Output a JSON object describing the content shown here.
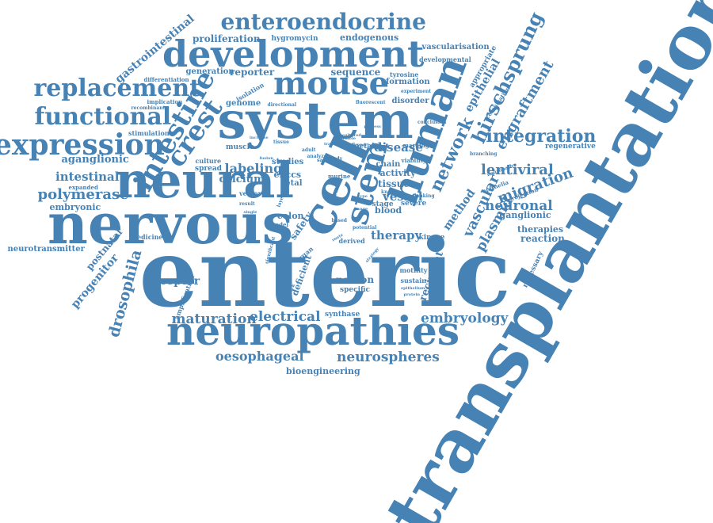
{
  "color": "#4682b4",
  "words": [
    {
      "text": "transplantation"
    },
    {
      "text": "enteric"
    },
    {
      "text": "nervous"
    },
    {
      "text": "neural"
    },
    {
      "text": "system"
    },
    {
      "text": "neuropathies"
    },
    {
      "text": "development"
    },
    {
      "text": "human"
    },
    {
      "text": "mouse"
    },
    {
      "text": "cell"
    },
    {
      "text": "stem"
    },
    {
      "text": "expression"
    },
    {
      "text": "functional"
    },
    {
      "text": "replacement"
    },
    {
      "text": "intestine"
    },
    {
      "text": "crest"
    },
    {
      "text": "enteroendocrine"
    },
    {
      "text": "network"
    },
    {
      "text": "hirschsprung"
    },
    {
      "text": "integration"
    },
    {
      "text": "engraftment"
    },
    {
      "text": "epithelial"
    },
    {
      "text": "lentiviral"
    },
    {
      "text": "vascular"
    },
    {
      "text": "plasmid"
    },
    {
      "text": "migration"
    },
    {
      "text": "neuronal"
    },
    {
      "text": "method"
    },
    {
      "text": "embryology"
    },
    {
      "text": "maturation"
    },
    {
      "text": "electrical"
    },
    {
      "text": "neurospheres"
    },
    {
      "text": "oesophageal"
    },
    {
      "text": "bioengineering"
    },
    {
      "text": "polymerase"
    },
    {
      "text": "intestinal"
    },
    {
      "text": "aganglionic"
    },
    {
      "text": "embryonic"
    },
    {
      "text": "gastrointestinal"
    },
    {
      "text": "drosophila"
    },
    {
      "text": "progenitor"
    },
    {
      "text": "postnatal"
    },
    {
      "text": "neurotransmitter"
    },
    {
      "text": "medicine"
    },
    {
      "text": "receptor"
    },
    {
      "text": "labeling"
    },
    {
      "text": "calcium"
    },
    {
      "text": "disease"
    },
    {
      "text": "therapy"
    },
    {
      "text": "vessel"
    },
    {
      "text": "tissue"
    },
    {
      "text": "activity"
    },
    {
      "text": "chain"
    },
    {
      "text": "blood"
    },
    {
      "text": "colon"
    },
    {
      "text": "enccs"
    },
    {
      "text": "studies"
    },
    {
      "text": "muscle"
    },
    {
      "text": "foetal"
    },
    {
      "text": "fetal"
    },
    {
      "text": "safety"
    },
    {
      "text": "neuron"
    },
    {
      "text": "specific"
    },
    {
      "text": "recipient"
    },
    {
      "text": "reaction"
    },
    {
      "text": "therapies"
    },
    {
      "text": "ganglionic"
    },
    {
      "text": "regenerative"
    },
    {
      "text": "kinase"
    },
    {
      "text": "proliferation"
    },
    {
      "text": "hygromycin"
    },
    {
      "text": "endogenous"
    },
    {
      "text": "vascularisation"
    },
    {
      "text": "developmental"
    },
    {
      "text": "generation"
    },
    {
      "text": "reporter"
    },
    {
      "text": "sequence"
    },
    {
      "text": "formation"
    },
    {
      "text": "tyrosine"
    },
    {
      "text": "disorder"
    },
    {
      "text": "genome"
    },
    {
      "text": "isolation"
    },
    {
      "text": "appropriate"
    },
    {
      "text": "differentiation"
    },
    {
      "text": "implication"
    },
    {
      "text": "recombinant"
    },
    {
      "text": "stimulation"
    },
    {
      "text": "culture"
    },
    {
      "text": "spread"
    },
    {
      "text": "vector"
    },
    {
      "text": "expanded"
    },
    {
      "text": "synthase"
    },
    {
      "text": "motility"
    },
    {
      "text": "sustain"
    },
    {
      "text": "deficient"
    },
    {
      "text": "organ"
    },
    {
      "text": "derived"
    },
    {
      "text": "stage"
    },
    {
      "text": "severe"
    },
    {
      "text": "marking"
    },
    {
      "text": "viability"
    },
    {
      "text": "murine"
    },
    {
      "text": "colonisation"
    },
    {
      "text": "epithelia"
    },
    {
      "text": "necessary"
    },
    {
      "text": "projection"
    },
    {
      "text": "amplification"
    },
    {
      "text": "directional"
    },
    {
      "text": "fluorescent"
    },
    {
      "text": "experiment"
    },
    {
      "text": "conclusion"
    },
    {
      "text": "neuropathy"
    },
    {
      "text": "branching"
    },
    {
      "text": "flanking"
    },
    {
      "text": "known"
    },
    {
      "text": "term"
    },
    {
      "text": "model"
    },
    {
      "text": "based"
    },
    {
      "text": "potential"
    },
    {
      "text": "study"
    },
    {
      "text": "sample"
    },
    {
      "text": "analyze"
    },
    {
      "text": "tissue"
    },
    {
      "text": "fusion"
    },
    {
      "text": "increase"
    },
    {
      "text": "cultured"
    },
    {
      "text": "transient"
    },
    {
      "text": "support"
    },
    {
      "text": "layered"
    },
    {
      "text": "result"
    },
    {
      "text": "single"
    },
    {
      "text": "feedback"
    },
    {
      "text": "significant"
    },
    {
      "text": "strategy"
    },
    {
      "text": "adult"
    },
    {
      "text": "range"
    },
    {
      "text": "protein"
    },
    {
      "text": "epithelium"
    },
    {
      "text": "type"
    },
    {
      "text": "variable"
    },
    {
      "text": "process"
    },
    {
      "text": "route"
    }
  ]
}
